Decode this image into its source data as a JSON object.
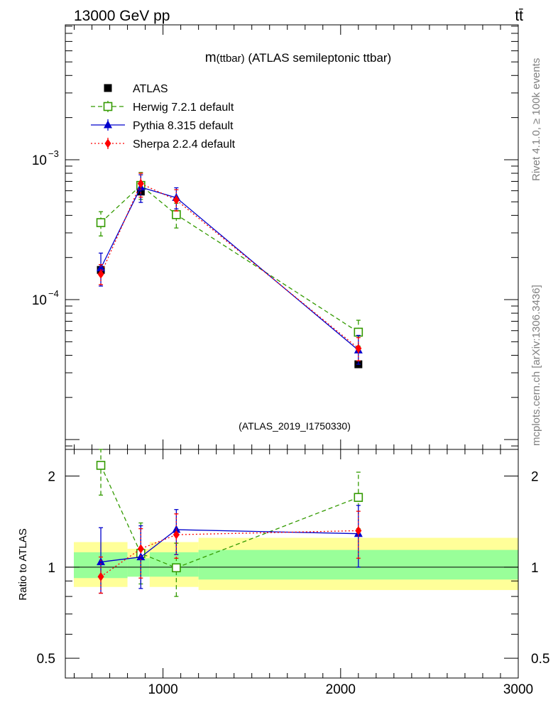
{
  "header": {
    "left": "13000 GeV pp",
    "right": "tt̄"
  },
  "side_labels": {
    "rivet": "Rivet 4.1.0, ≥ 100k events",
    "mcplots": "mcplots.cern.ch [arXiv:1306.3436]"
  },
  "chart_data": [
    {
      "type": "line",
      "title": "m(ttbar) (ATLAS semileptonic ttbar)",
      "title_parts": {
        "main": "m",
        "sub": "(ttbar)",
        "rest": " (ATLAS semileptonic ttbar)"
      },
      "watermark": "(ATLAS_2019_I1750330)",
      "yscale": "log",
      "xlim": [
        450,
        3000
      ],
      "ylim": [
        8.5e-06,
        0.0092
      ],
      "ytick_labels": [
        {
          "value": 0.001,
          "base": "10",
          "exp": "−3"
        },
        {
          "value": 0.0001,
          "base": "10",
          "exp": "−4"
        }
      ],
      "legend_position": "top-left",
      "data": {
        "name": "ATLAS",
        "x": [
          650,
          875,
          1075,
          2100
        ],
        "y": [
          0.000163,
          0.000592,
          0.000405,
          3.45e-05
        ],
        "err": [
          0.0,
          0.0,
          0.0,
          0.0
        ]
      },
      "series": [
        {
          "name": "Herwig 7.2.1 default",
          "color": "#339a00",
          "marker": "open-square",
          "dash": "6,4",
          "x": [
            650,
            875,
            1075,
            2100
          ],
          "y": [
            0.000355,
            0.000655,
            0.000405,
            5.85e-05
          ],
          "err_lo": [
            0.000285,
            0.00052,
            0.000325,
            4.65e-05
          ],
          "err_hi": [
            0.000425,
            0.00081,
            0.000488,
            7.12e-05
          ]
        },
        {
          "name": "Pythia 8.315 default",
          "color": "#0000cc",
          "marker": "triangle",
          "dash": "",
          "x": [
            650,
            875,
            1075,
            2100
          ],
          "y": [
            0.000168,
            0.000635,
            0.000535,
            4.35e-05
          ],
          "err_lo": [
            0.000125,
            0.000495,
            0.000445,
            3.45e-05
          ],
          "err_hi": [
            0.000215,
            0.00078,
            0.00063,
            5.55e-05
          ]
        },
        {
          "name": "Sherpa 2.2.4 default",
          "color": "#ff0000",
          "marker": "diamond",
          "dash": "2,3",
          "x": [
            650,
            875,
            1075,
            2100
          ],
          "y": [
            0.000152,
            0.000675,
            0.000515,
            4.48e-05
          ],
          "err_lo": [
            0.000128,
            0.00054,
            0.00043,
            3.65e-05
          ],
          "err_hi": [
            0.000178,
            0.0008,
            0.00061,
            5.35e-05
          ]
        }
      ]
    },
    {
      "type": "line",
      "ylabel": "Ratio to ATLAS",
      "xlabel": "",
      "yscale": "log",
      "xlim": [
        450,
        3000
      ],
      "ylim": [
        0.43,
        2.45
      ],
      "xtick_labels": [
        1000,
        2000,
        3000
      ],
      "ytick_labels": [
        "0.5",
        "1",
        "2"
      ],
      "reference": 1.0,
      "bands": [
        {
          "x0": 450,
          "x1": 800,
          "green_lo": 0.92,
          "green_hi": 1.12,
          "yellow_lo": 0.86,
          "yellow_hi": 1.21
        },
        {
          "x0": 800,
          "x1": 925,
          "green_lo": 0.93,
          "green_hi": 1.07,
          "yellow_lo": 0.93,
          "yellow_hi": 1.15
        },
        {
          "x0": 925,
          "x1": 1200,
          "green_lo": 0.93,
          "green_hi": 1.12,
          "yellow_lo": 0.86,
          "yellow_hi": 1.21
        },
        {
          "x0": 1200,
          "x1": 3000,
          "green_lo": 0.91,
          "green_hi": 1.14,
          "yellow_lo": 0.84,
          "yellow_hi": 1.25
        }
      ],
      "series": [
        {
          "name": "Herwig 7.2.1 default",
          "color": "#339a00",
          "marker": "open-square",
          "dash": "6,4",
          "x": [
            650,
            875,
            1075,
            2100
          ],
          "y": [
            2.17,
            1.11,
            0.995,
            1.7
          ],
          "err_lo": [
            1.73,
            0.88,
            0.8,
            1.34
          ],
          "err_hi": [
            2.45,
            1.4,
            1.2,
            2.06
          ]
        },
        {
          "name": "Pythia 8.315 default",
          "color": "#0000cc",
          "marker": "triangle",
          "dash": "",
          "x": [
            650,
            875,
            1075,
            2100
          ],
          "y": [
            1.04,
            1.08,
            1.33,
            1.29
          ],
          "err_lo": [
            0.82,
            0.85,
            1.1,
            1.0
          ],
          "err_hi": [
            1.35,
            1.37,
            1.55,
            1.6
          ]
        },
        {
          "name": "Sherpa 2.2.4 default",
          "color": "#ff0000",
          "marker": "diamond",
          "dash": "2,3",
          "x": [
            650,
            875,
            1075,
            2100
          ],
          "y": [
            0.93,
            1.15,
            1.28,
            1.32
          ],
          "err_lo": [
            0.82,
            0.92,
            1.07,
            1.07
          ],
          "err_hi": [
            1.08,
            1.34,
            1.5,
            1.53
          ]
        }
      ]
    }
  ]
}
